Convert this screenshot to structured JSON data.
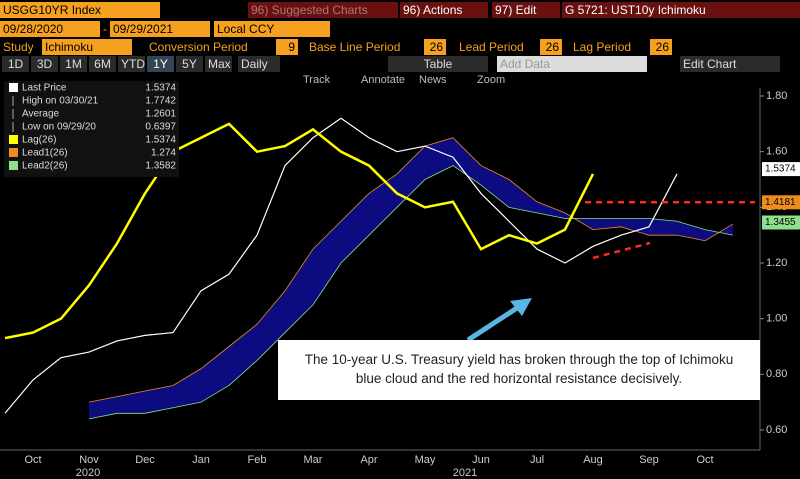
{
  "toolbar": {
    "ticker": "USGG10YR Index",
    "suggested": "96) Suggested Charts",
    "actions": "96) Actions",
    "edit": "97) Edit",
    "chart_id": "G 5721: UST10y Ichimoku",
    "start_date": "09/28/2020",
    "dash": "-",
    "end_date": "09/29/2021",
    "currency": "Local CCY",
    "study_label": "Study",
    "study": "Ichimoku",
    "conversion_label": "Conversion Period",
    "conversion": 9,
    "base_label": "Base Line Period",
    "base": 26,
    "lead_label": "Lead Period",
    "lead": 26,
    "lag_label": "Lag Period",
    "lag": 26,
    "ranges": [
      "1D",
      "3D",
      "1M",
      "6M",
      "YTD",
      "1Y",
      "5Y",
      "Max"
    ],
    "frequency": "Daily",
    "table": "Table",
    "add_data": "Add Data",
    "edit_chart": "Edit Chart",
    "tools": [
      "Track",
      "Annotate",
      "News",
      "Zoom"
    ]
  },
  "chart_data": {
    "type": "line",
    "categories": [
      null,
      "Oct",
      null,
      "Nov",
      null,
      "Dec",
      null,
      "Jan",
      null,
      "Feb",
      null,
      "Mar",
      null,
      "Apr",
      null,
      "May",
      null,
      "Jun",
      null,
      "Jul",
      null,
      "Aug",
      null,
      "Sep",
      null,
      "Oct",
      null
    ],
    "years": [
      "2020",
      "2021"
    ],
    "legend_stats": [
      {
        "label": "High on 03/30/21",
        "value": 1.7742
      },
      {
        "label": "Average",
        "value": 1.2601
      },
      {
        "label": "Low on 09/29/20",
        "value": 0.6397
      }
    ],
    "series": [
      {
        "name": "Last Price",
        "color": "#ffffff",
        "legend_value": 1.5374,
        "values": [
          0.66,
          0.78,
          0.86,
          0.88,
          0.92,
          0.94,
          0.95,
          1.1,
          1.16,
          1.3,
          1.55,
          1.65,
          1.72,
          1.65,
          1.6,
          1.62,
          1.58,
          1.45,
          1.35,
          1.25,
          1.2,
          1.26,
          1.3,
          1.33,
          1.52,
          null,
          null
        ]
      },
      {
        "name": "Lag(26)",
        "color": "#ffff00",
        "legend_value": 1.5374,
        "values": [
          0.93,
          0.95,
          1.0,
          1.12,
          1.27,
          1.45,
          1.6,
          1.65,
          1.7,
          1.6,
          1.62,
          1.68,
          1.6,
          1.55,
          1.45,
          1.4,
          1.42,
          1.25,
          1.3,
          1.27,
          1.32,
          1.52,
          null,
          null,
          null,
          null,
          null
        ]
      },
      {
        "name": "Lead1(26)",
        "color": "#f08c1e",
        "legend_value": 1.274,
        "values": [
          null,
          null,
          null,
          0.7,
          0.72,
          0.74,
          0.76,
          0.82,
          0.9,
          0.98,
          1.1,
          1.25,
          1.35,
          1.45,
          1.52,
          1.62,
          1.65,
          1.55,
          1.5,
          1.42,
          1.38,
          1.32,
          1.33,
          1.3,
          1.3,
          1.28,
          1.34
        ]
      },
      {
        "name": "Lead2(26)",
        "color": "#8ee08e",
        "legend_value": 1.3582,
        "values": [
          null,
          null,
          null,
          0.64,
          0.66,
          0.66,
          0.68,
          0.7,
          0.76,
          0.85,
          0.95,
          1.05,
          1.2,
          1.3,
          1.4,
          1.5,
          1.55,
          1.48,
          1.4,
          1.38,
          1.36,
          1.36,
          1.36,
          1.36,
          1.35,
          1.32,
          1.3
        ]
      }
    ],
    "cloud_color": "#0c0c80",
    "reference_lines": [
      {
        "value": 1.4181,
        "color": "#ff2828"
      }
    ],
    "value_tags": [
      {
        "value": 1.5374,
        "color": "#ffffff"
      },
      {
        "value": 1.4181,
        "color": "#f08c1e"
      },
      {
        "value": 1.3455,
        "color": "#8ee08e"
      }
    ],
    "ylim": [
      0.6,
      1.8
    ],
    "yticks": [
      {
        "value": 0.6,
        "label": "0.60"
      },
      {
        "value": 0.8,
        "label": "0.80"
      },
      {
        "value": 1,
        "label": "1.00"
      },
      {
        "value": 1.2,
        "label": "1.20"
      },
      {
        "value": 1.4,
        "label": "1.40"
      },
      {
        "value": 1.6,
        "label": "1.60"
      },
      {
        "value": 1.8,
        "label": "1.80"
      }
    ],
    "annotation": "The 10-year U.S. Treasury yield has broken through the top of Ichimoku blue cloud and the red horizontal resistance decisively."
  }
}
